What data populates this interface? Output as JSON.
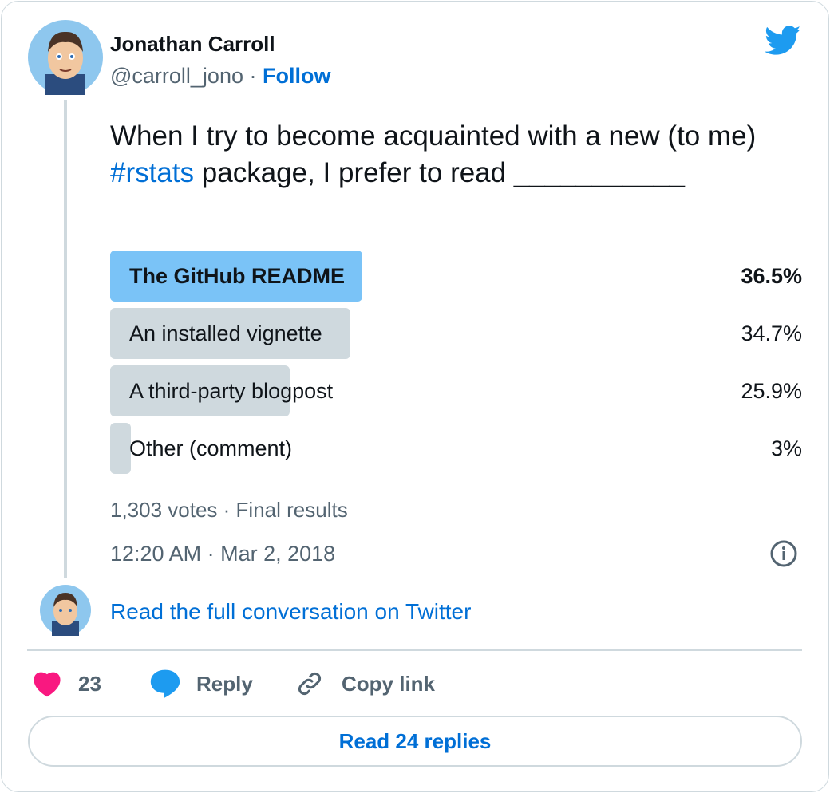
{
  "author": {
    "name": "Jonathan Carroll",
    "handle": "@carroll_jono",
    "separator": "·",
    "follow": "Follow"
  },
  "tweet": {
    "text_before": "When I try to become acquainted with a new (to me) ",
    "hashtag": "#rstats",
    "text_after": " package, I prefer to read ___________"
  },
  "poll": {
    "options": [
      "The GitHub README",
      "An installed vignette",
      "A third-party blogpost",
      "Other (comment)"
    ],
    "values": [
      36.5,
      34.7,
      25.9,
      3
    ],
    "value_labels": [
      "36.5%",
      "34.7%",
      "25.9%",
      "3%"
    ],
    "winner": 0,
    "summary": "1,303 votes · Final results"
  },
  "timestamp": "12:20 AM · Mar 2, 2018",
  "conversation_link": "Read the full conversation on Twitter",
  "actions": {
    "likes": "23",
    "reply": "Reply",
    "copy_link": "Copy link"
  },
  "read_replies": "Read 24 replies"
}
